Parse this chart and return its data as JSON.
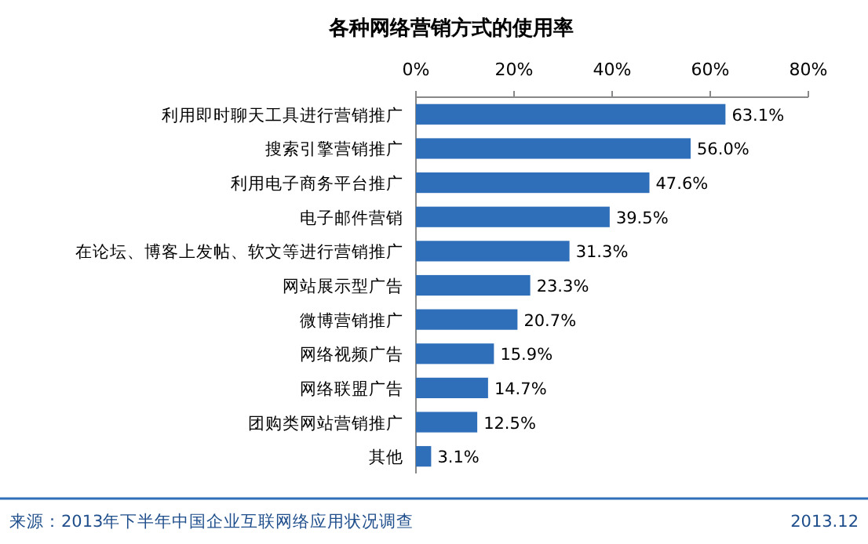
{
  "chart_data": {
    "type": "bar",
    "orientation": "horizontal",
    "title": "各种网络营销方式的使用率",
    "categories": [
      "利用即时聊天工具进行营销推广",
      "搜索引擎营销推广",
      "利用电子商务平台推广",
      "电子邮件营销",
      "在论坛、博客上发帖、软文等进行营销推广",
      "网站展示型广告",
      "微博营销推广",
      "网络视频广告",
      "网络联盟广告",
      "团购类网站营销推广",
      "其他"
    ],
    "values": [
      63.1,
      56.0,
      47.6,
      39.5,
      31.3,
      23.3,
      20.7,
      15.9,
      14.7,
      12.5,
      3.1
    ],
    "value_labels": [
      "63.1%",
      "56.0%",
      "47.6%",
      "39.5%",
      "31.3%",
      "23.3%",
      "20.7%",
      "15.9%",
      "14.7%",
      "12.5%",
      "3.1%"
    ],
    "color": "#2f6fba",
    "xlim": [
      0,
      80
    ],
    "xticks": [
      {
        "value": 0,
        "label": "0%"
      },
      {
        "value": 20,
        "label": "20%"
      },
      {
        "value": 40,
        "label": "40%"
      },
      {
        "value": 60,
        "label": "60%"
      },
      {
        "value": 80,
        "label": "80%"
      }
    ],
    "annotations": [
      "来源：2013年下半年中国企业互联网络应用状况调查",
      "2013.12"
    ]
  }
}
